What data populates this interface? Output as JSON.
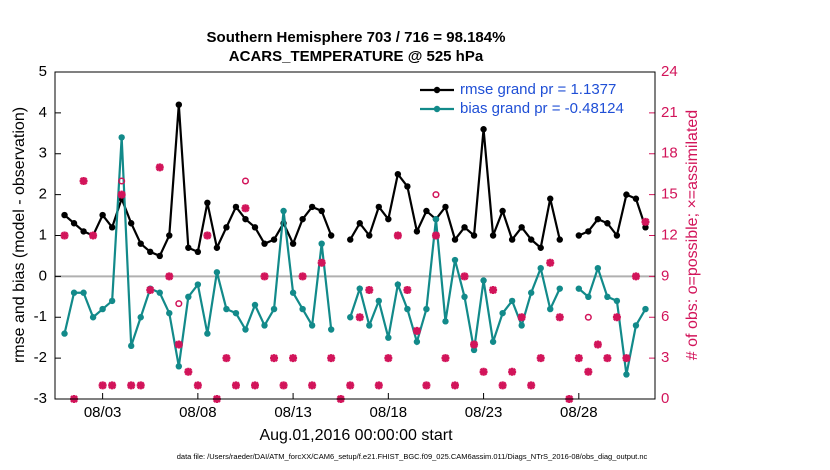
{
  "chart_data": {
    "type": "line",
    "title": "Southern Hemisphere 703 / 716 = 98.184%",
    "subtitle": "ACARS_TEMPERATURE @ 525 hPa",
    "xlabel": "Aug.01,2016 00:00:00 start",
    "ylabel": "rmse and bias (model - observation)",
    "y2label": "# of obs: o=possible; ×=assimilated",
    "footnote": "data file: /Users/raeder/DAI/ATM_forcXX/CAM6_setup/f.e21.FHIST_BGC.f09_025.CAM6assim.011/Diags_NTrS_2016-08/obs_diag_output.nc",
    "legend_position": "upper right",
    "x": [
      0,
      0.5,
      1,
      1.5,
      2,
      2.5,
      3,
      3.5,
      4,
      4.5,
      5,
      5.5,
      6,
      6.5,
      7,
      7.5,
      8,
      8.5,
      9,
      9.5,
      10,
      10.5,
      11,
      11.5,
      12,
      12.5,
      13,
      13.5,
      14,
      14.5,
      15,
      15.5,
      16,
      16.5,
      17,
      17.5,
      18,
      18.5,
      19,
      19.5,
      20,
      20.5,
      21,
      21.5,
      22,
      22.5,
      23,
      23.5,
      24,
      24.5,
      25,
      25.5,
      26,
      26.5,
      27,
      27.5,
      28,
      28.5,
      29,
      29.5,
      30,
      30.5
    ],
    "xlim": [
      -0.5,
      31
    ],
    "xticks": [
      {
        "value": 2,
        "label": "08/03"
      },
      {
        "value": 7,
        "label": "08/08"
      },
      {
        "value": 12,
        "label": "08/13"
      },
      {
        "value": 17,
        "label": "08/18"
      },
      {
        "value": 22,
        "label": "08/23"
      },
      {
        "value": 27,
        "label": "08/28"
      }
    ],
    "ylim": [
      -3,
      5
    ],
    "yticks": [
      -3,
      -2,
      -1,
      0,
      1,
      2,
      3,
      4,
      5
    ],
    "y2lim": [
      0,
      24
    ],
    "y2ticks": [
      0,
      3,
      6,
      9,
      12,
      15,
      18,
      21,
      24
    ],
    "series": [
      {
        "name": "rmse grand pr = 1.1377",
        "color": "#000000",
        "marker": "dot",
        "values": [
          1.5,
          1.3,
          1.1,
          1.0,
          1.5,
          1.2,
          1.9,
          1.3,
          0.8,
          0.6,
          0.5,
          1.0,
          4.2,
          0.7,
          0.6,
          1.8,
          0.7,
          1.2,
          1.7,
          1.4,
          1.2,
          0.8,
          0.9,
          1.3,
          0.8,
          1.4,
          1.7,
          1.6,
          1.0,
          null,
          0.9,
          1.3,
          1.0,
          1.7,
          1.4,
          2.5,
          2.2,
          1.1,
          1.6,
          1.4,
          1.7,
          0.9,
          1.2,
          1.0,
          3.6,
          1.0,
          1.6,
          0.9,
          1.2,
          0.9,
          0.7,
          1.9,
          0.9,
          null,
          1.0,
          1.1,
          1.4,
          1.3,
          1.0,
          2.0,
          1.9,
          1.2
        ]
      },
      {
        "name": "bias grand pr = -0.48124",
        "color": "#128a8a",
        "marker": "dot",
        "values": [
          -1.4,
          -0.4,
          -0.4,
          -1.0,
          -0.8,
          -0.6,
          3.4,
          -1.7,
          -1.0,
          -0.3,
          -0.4,
          -0.9,
          -2.2,
          -0.5,
          -0.2,
          -1.4,
          0.1,
          -0.8,
          -0.9,
          -1.3,
          -0.7,
          -1.2,
          -0.8,
          1.6,
          -0.4,
          -0.8,
          -1.2,
          0.8,
          -1.3,
          null,
          -1.0,
          -0.3,
          -1.2,
          -0.6,
          -1.5,
          -0.2,
          -0.8,
          -1.6,
          -0.8,
          1.4,
          -1.1,
          0.4,
          -0.5,
          -1.8,
          -0.1,
          -1.6,
          -0.9,
          -0.6,
          -1.2,
          -0.4,
          0.2,
          -0.8,
          -0.3,
          null,
          -0.3,
          -0.5,
          0.2,
          -0.5,
          -0.6,
          -2.4,
          -1.2,
          -0.8
        ]
      },
      {
        "color": "#d2145a",
        "marker": "asterisk",
        "axis": "y2",
        "values": [
          12,
          0,
          16,
          12,
          1,
          1,
          15,
          1,
          1,
          8,
          17,
          9,
          4,
          2,
          1,
          12,
          0,
          3,
          1,
          14,
          1,
          9,
          3,
          1,
          3,
          9,
          1,
          10,
          3,
          0,
          1,
          6,
          8,
          1,
          3,
          12,
          8,
          5,
          1,
          12,
          3,
          1,
          9,
          4,
          2,
          8,
          1,
          2,
          6,
          1,
          3,
          10,
          6,
          0,
          3,
          2,
          4,
          3,
          6,
          3,
          9,
          13
        ]
      },
      {
        "color": "#d2145a",
        "marker": "circle",
        "axis": "y2",
        "values": [
          null,
          null,
          null,
          null,
          null,
          null,
          16,
          null,
          null,
          null,
          null,
          null,
          7,
          null,
          null,
          null,
          null,
          null,
          null,
          16,
          null,
          null,
          null,
          null,
          null,
          null,
          null,
          null,
          null,
          null,
          null,
          null,
          null,
          null,
          null,
          12,
          null,
          null,
          null,
          15,
          null,
          null,
          null,
          null,
          null,
          null,
          null,
          null,
          null,
          null,
          null,
          null,
          null,
          null,
          null,
          6,
          null,
          null,
          null,
          null,
          null,
          null
        ]
      }
    ]
  }
}
